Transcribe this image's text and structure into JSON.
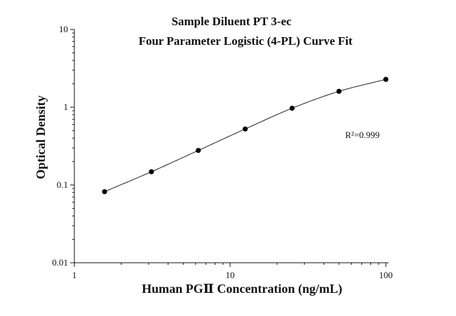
{
  "chart_data": {
    "type": "scatter",
    "title": "Sample Diluent PT 3-ec",
    "subtitle": "Four Parameter Logistic (4-PL) Curve Fit",
    "xlabel": "Human PGⅡ Concentration (ng/mL)",
    "ylabel": "Optical Density",
    "x_scale": "log",
    "y_scale": "log",
    "xlim": [
      1,
      100
    ],
    "ylim": [
      0.01,
      10
    ],
    "x_tick_labels": [
      "1",
      "10",
      "100"
    ],
    "y_tick_labels": [
      "0.01",
      "0.1",
      "1",
      "10"
    ],
    "grid": false,
    "annotation": "R²=0.999",
    "series": [
      {
        "x": [
          1.5625,
          3.125,
          6.25,
          12.5,
          25,
          50,
          100
        ],
        "y": [
          0.082,
          0.148,
          0.278,
          0.525,
          0.97,
          1.6,
          2.28
        ]
      }
    ],
    "fit": "4-PL curve"
  }
}
